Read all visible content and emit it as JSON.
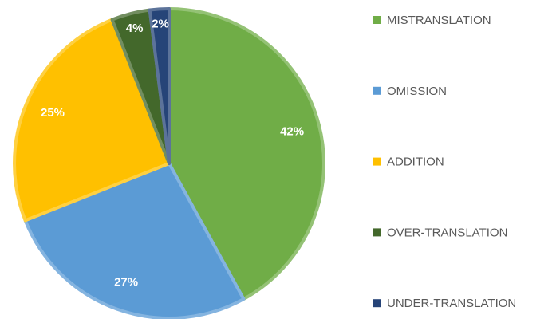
{
  "chart_data": {
    "type": "pie",
    "categories": [
      "MISTRANSLATION",
      "OMISSION",
      "ADDITION",
      "OVER-TRANSLATION",
      "UNDER-TRANSLATION"
    ],
    "values": [
      42,
      27,
      25,
      4,
      2
    ],
    "value_labels": [
      "42%",
      "27%",
      "25%",
      "4%",
      "2%"
    ],
    "colors": [
      "#70ad47",
      "#5b9bd5",
      "#ffc000",
      "#43682b",
      "#264478"
    ],
    "legend": "right"
  }
}
